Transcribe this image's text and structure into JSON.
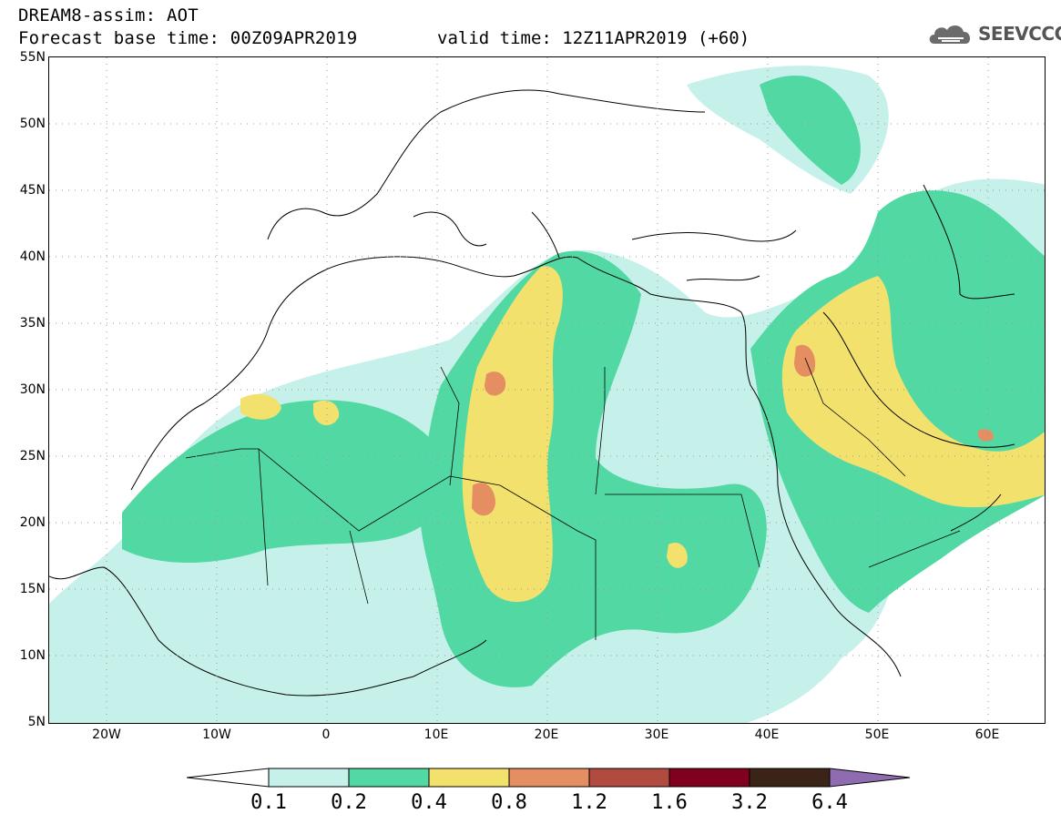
{
  "header": {
    "title_line1": "DREAM8-assim: AOT",
    "title_line2": "Forecast base time: 00Z09APR2019",
    "valid_time": "valid time: 12Z11APR2019 (+60)"
  },
  "logo": {
    "text": "SEEVCCC",
    "icon": "cloud-icon"
  },
  "axes": {
    "y_labels": [
      "55N",
      "50N",
      "45N",
      "40N",
      "35N",
      "30N",
      "25N",
      "20N",
      "15N",
      "10N",
      "5N"
    ],
    "x_labels": [
      "20W",
      "10W",
      "0",
      "10E",
      "20E",
      "30E",
      "40E",
      "50E",
      "60E"
    ]
  },
  "colorbar": {
    "labels": [
      "0.1",
      "0.2",
      "0.4",
      "0.8",
      "1.2",
      "1.6",
      "3.2",
      "6.4"
    ],
    "colors": [
      "#ffffff",
      "#c6f1ea",
      "#52d9a3",
      "#f3e16e",
      "#e58e62",
      "#b24b3f",
      "#800020",
      "#3b2317",
      "#8f6cb0"
    ]
  },
  "map_colors": {
    "light": "#c6f1ea",
    "green": "#52d9a3",
    "yellow": "#f3e16e",
    "orange": "#e58e62"
  }
}
